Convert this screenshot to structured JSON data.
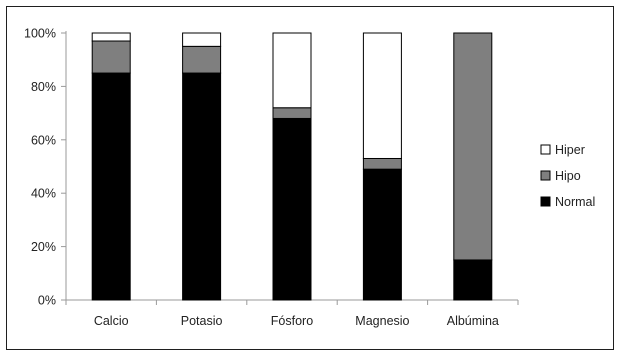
{
  "chart_data": {
    "type": "bar",
    "stacked": true,
    "percent_stacked": true,
    "categories": [
      "Calcio",
      "Potasio",
      "Fósforo",
      "Magnesio",
      "Albúmina"
    ],
    "series": [
      {
        "name": "Normal",
        "values": [
          85,
          85,
          68,
          49,
          15
        ],
        "color": "#000000"
      },
      {
        "name": "Hipo",
        "values": [
          12,
          10,
          4,
          4,
          85
        ],
        "color": "#7f7f7f"
      },
      {
        "name": "Hiper",
        "values": [
          3,
          5,
          28,
          47,
          0
        ],
        "color": "#ffffff"
      }
    ],
    "y_ticks": [
      "0%",
      "20%",
      "40%",
      "60%",
      "80%",
      "100%"
    ],
    "ylim": [
      0,
      100
    ],
    "grid": false,
    "legend": {
      "placement": "right",
      "order": [
        "Hiper",
        "Hipo",
        "Normal"
      ]
    }
  }
}
